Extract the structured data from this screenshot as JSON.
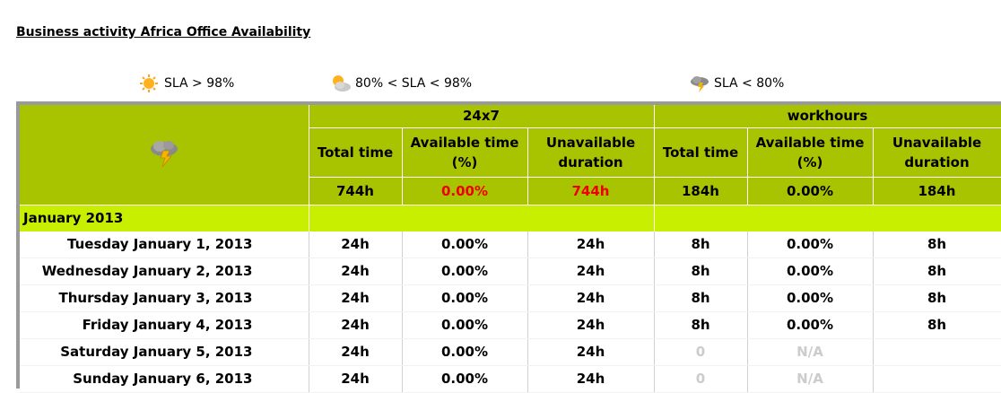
{
  "title": "Business activity Africa Office Availability",
  "legend": [
    {
      "icon": "sun-icon",
      "text": "SLA  >  98%"
    },
    {
      "icon": "sun-cloud-icon",
      "text": "80% < SLA <  98%"
    },
    {
      "icon": "storm-cloud-icon",
      "text": "SLA  <  80%"
    }
  ],
  "status_icon": "storm-cloud-icon",
  "groups": {
    "g1": "24x7",
    "g2": "workhours"
  },
  "headers": {
    "total": "Total time",
    "avail_l1": "Available time",
    "avail_l2": "(%)",
    "unavail_l1": "Unavailable",
    "unavail_l2": "duration"
  },
  "totals": {
    "t1": "744h",
    "a1": "0.00%",
    "u1": "744h",
    "t2": "184h",
    "a2": "0.00%",
    "u2": "184h"
  },
  "month": "January 2013",
  "rows": [
    {
      "day": "Tuesday January 1, 2013",
      "t1": "24h",
      "a1": "0.00%",
      "u1": "24h",
      "t2": "8h",
      "a2": "0.00%",
      "u2": "8h"
    },
    {
      "day": "Wednesday January 2, 2013",
      "t1": "24h",
      "a1": "0.00%",
      "u1": "24h",
      "t2": "8h",
      "a2": "0.00%",
      "u2": "8h"
    },
    {
      "day": "Thursday January 3, 2013",
      "t1": "24h",
      "a1": "0.00%",
      "u1": "24h",
      "t2": "8h",
      "a2": "0.00%",
      "u2": "8h"
    },
    {
      "day": "Friday January 4, 2013",
      "t1": "24h",
      "a1": "0.00%",
      "u1": "24h",
      "t2": "8h",
      "a2": "0.00%",
      "u2": "8h"
    },
    {
      "day": "Saturday January 5, 2013",
      "t1": "24h",
      "a1": "0.00%",
      "u1": "24h",
      "t2": "0",
      "a2": "N/A",
      "u2": ""
    },
    {
      "day": "Sunday January 6, 2013",
      "t1": "24h",
      "a1": "0.00%",
      "u1": "24h",
      "t2": "0",
      "a2": "N/A",
      "u2": ""
    }
  ]
}
